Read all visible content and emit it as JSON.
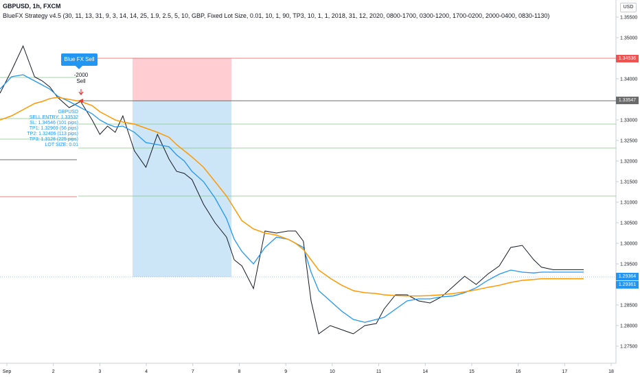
{
  "header": {
    "symbol_line": "GBPUSD, 1h, FXCM",
    "indicator_line": "BlueFX Strategy v4.5 (30, 11, 13, 31, 9, 3, 14, 14, 25, 1.9, 2.5, 5, 10, GBP, Fixed Lot Size, 0.01, 10, 1, 90, TP3, 10, 1, 1, 2018, 31, 12, 2020, 0800-1700, 0300-1200, 1700-0200, 2000-0400, 0830-1130)"
  },
  "currency": "USD",
  "price_labels": {
    "stop_loss": "1.34536",
    "entry": "1.33547",
    "current_top": "1.29364",
    "current_bottom": "1.29361"
  },
  "signal": {
    "button": "Blue FX Sell",
    "amount": "-2000",
    "side": "Sell"
  },
  "trade_info": [
    "GBPUSD",
    "SELL ENTRY: 1.33532",
    "SL: 1.34546 (101 pips)",
    "TP1: 1.32969 (56 pips)",
    "TP2: 1.32406 (113 pips)",
    "TP3: 1.3128 (225 pips)",
    "LOT SIZE: 0.01"
  ],
  "chart_data": {
    "type": "line",
    "title": "GBPUSD, 1h, FXCM",
    "y_ticks": [
      "1.35500",
      "1.35000",
      "1.34500",
      "1.34000",
      "1.33500",
      "1.33000",
      "1.32500",
      "1.32000",
      "1.31500",
      "1.31000",
      "1.30500",
      "1.30000",
      "1.29500",
      "1.29000",
      "1.28500",
      "1.28000",
      "1.27500"
    ],
    "x_ticks": [
      "Sep",
      "2",
      "3",
      "4",
      "7",
      "8",
      "9",
      "10",
      "11",
      "14",
      "15",
      "16",
      "17",
      "18"
    ],
    "ylim": [
      1.2725,
      1.3575
    ],
    "x": [
      0,
      0.3,
      0.6,
      0.9,
      1.1,
      1.3,
      1.5,
      1.8,
      2.1,
      2.4,
      2.6,
      2.8,
      3.0,
      3.2,
      3.5,
      3.8,
      4.1,
      4.4,
      4.6,
      4.8,
      5.0,
      5.3,
      5.6,
      5.9,
      6.1,
      6.3,
      6.6,
      6.9,
      7.2,
      7.5,
      7.7,
      7.9,
      8.1,
      8.3,
      8.6,
      8.9,
      9.2,
      9.5,
      9.8,
      10.0,
      10.3,
      10.6,
      10.9,
      11.2,
      11.5,
      11.8,
      12.1,
      12.4,
      12.7,
      13.0,
      13.3,
      13.6,
      13.9,
      14.1,
      14.4,
      14.6,
      14.8,
      15.0,
      15.2
    ],
    "series": [
      {
        "values": [
          1.3365,
          1.342,
          1.348,
          1.3405,
          1.3395,
          1.338,
          1.3355,
          1.333,
          1.3345,
          1.33,
          1.3265,
          1.3285,
          1.327,
          1.331,
          1.3225,
          1.3185,
          1.3265,
          1.3205,
          1.3175,
          1.317,
          1.3155,
          1.3095,
          1.305,
          1.3015,
          1.296,
          1.2945,
          1.289,
          1.303,
          1.3025,
          1.303,
          1.303,
          1.3005,
          1.286,
          1.278,
          1.28,
          1.279,
          1.278,
          1.28,
          1.2805,
          1.284,
          1.2875,
          1.2875,
          1.286,
          1.2855,
          1.287,
          1.2895,
          1.292,
          1.29,
          1.2925,
          1.2945,
          1.299,
          1.2995,
          1.296,
          1.2942,
          1.2936,
          1.2936,
          1.2936,
          1.2936,
          1.2936
        ]
      },
      {
        "values": [
          1.3375,
          1.3405,
          1.341,
          1.3395,
          1.3385,
          1.3375,
          1.3358,
          1.3345,
          1.333,
          1.3315,
          1.33,
          1.329,
          1.3283,
          1.3285,
          1.327,
          1.3245,
          1.324,
          1.3235,
          1.3215,
          1.32,
          1.3175,
          1.315,
          1.311,
          1.306,
          1.301,
          1.298,
          1.295,
          1.299,
          1.3015,
          1.301,
          1.3,
          1.299,
          1.293,
          1.2885,
          1.286,
          1.2835,
          1.2815,
          1.2808,
          1.2815,
          1.282,
          1.284,
          1.286,
          1.2865,
          1.2865,
          1.287,
          1.2872,
          1.288,
          1.2892,
          1.291,
          1.2925,
          1.2935,
          1.293,
          1.2928,
          1.293,
          1.293,
          1.293,
          1.293,
          1.293,
          1.293
        ]
      },
      {
        "values": [
          1.33,
          1.331,
          1.3325,
          1.334,
          1.3345,
          1.3352,
          1.3355,
          1.335,
          1.3345,
          1.3335,
          1.332,
          1.331,
          1.33,
          1.3295,
          1.329,
          1.328,
          1.327,
          1.3258,
          1.324,
          1.3225,
          1.321,
          1.3185,
          1.315,
          1.3115,
          1.3085,
          1.3055,
          1.3035,
          1.3025,
          1.302,
          1.301,
          1.3,
          1.2985,
          1.296,
          1.2935,
          1.2915,
          1.2898,
          1.2885,
          1.288,
          1.2878,
          1.2875,
          1.2873,
          1.2872,
          1.2872,
          1.2873,
          1.2875,
          1.2878,
          1.2882,
          1.2887,
          1.2893,
          1.2898,
          1.2905,
          1.291,
          1.2912,
          1.2914,
          1.2914,
          1.2914,
          1.2914,
          1.2914,
          1.2914
        ]
      }
    ],
    "grid": false
  }
}
